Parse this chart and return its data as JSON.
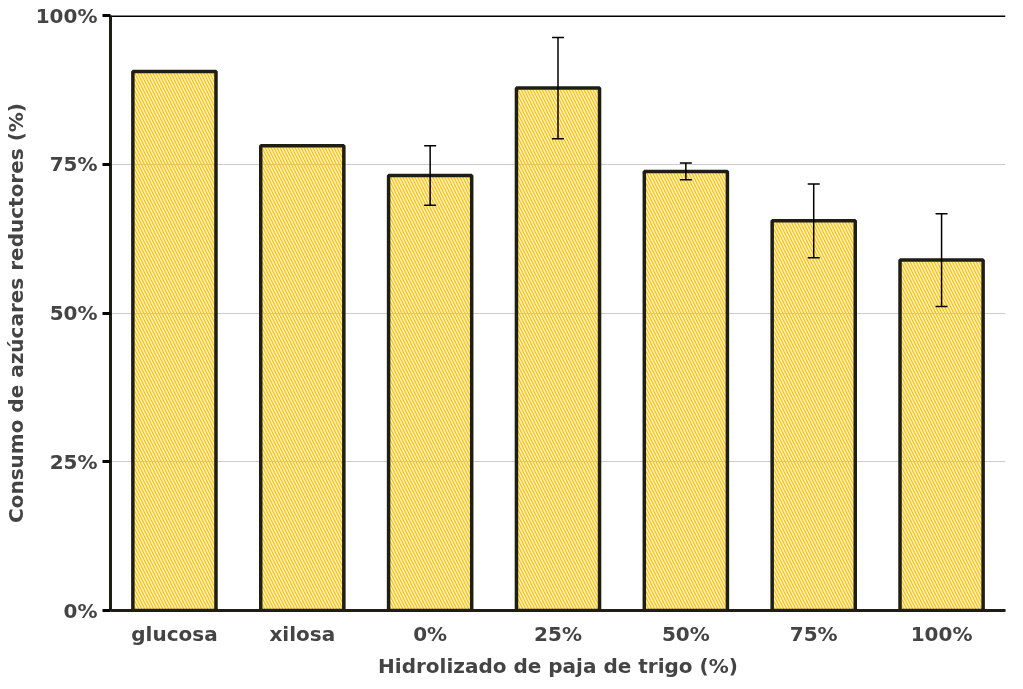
{
  "chart_data": {
    "type": "bar",
    "xlabel": "Hidrolizado de paja de trigo (%)",
    "ylabel": "Consumo de azúcares reductores (%)",
    "categories": [
      "glucosa",
      "xilosa",
      "0%",
      "25%",
      "50%",
      "75%",
      "100%"
    ],
    "values": [
      90.6,
      78.1,
      73.1,
      87.8,
      73.8,
      65.5,
      58.9
    ],
    "errors": [
      null,
      null,
      5.0,
      8.5,
      1.4,
      6.2,
      7.8
    ],
    "color": "#ffc000",
    "ylim": [
      0,
      100
    ],
    "yticks": [
      {
        "value": 0,
        "label": "0%"
      },
      {
        "value": 25,
        "label": "25%"
      },
      {
        "value": 50,
        "label": "50%"
      },
      {
        "value": 75,
        "label": "75%"
      },
      {
        "value": 100,
        "label": "100%"
      }
    ],
    "grid": "y"
  }
}
